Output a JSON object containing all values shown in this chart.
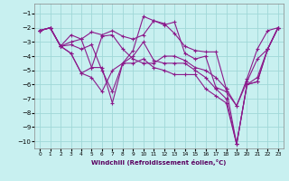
{
  "xlabel": "Windchill (Refroidissement éolien,°C)",
  "bg_color": "#c8f0f0",
  "grid_color": "#a0d8d8",
  "line_color": "#8b1a8b",
  "xlim": [
    -0.5,
    23.5
  ],
  "ylim": [
    -10.5,
    -0.3
  ],
  "yticks": [
    -1,
    -2,
    -3,
    -4,
    -5,
    -6,
    -7,
    -8,
    -9,
    -10
  ],
  "xticks": [
    0,
    1,
    2,
    3,
    4,
    5,
    6,
    7,
    8,
    9,
    10,
    11,
    12,
    13,
    14,
    15,
    16,
    17,
    18,
    19,
    20,
    21,
    22,
    23
  ],
  "lines": [
    {
      "x": [
        0,
        1,
        2,
        3,
        4,
        5,
        6,
        7,
        8,
        9,
        10,
        11,
        12,
        13,
        14,
        15,
        16,
        17,
        18,
        19,
        20,
        21,
        22,
        23
      ],
      "y": [
        -2.2,
        -2.0,
        -3.3,
        -2.5,
        -2.8,
        -2.3,
        -2.5,
        -2.2,
        -2.6,
        -2.8,
        -2.5,
        -1.5,
        -1.7,
        -2.4,
        -3.3,
        -3.6,
        -3.7,
        -3.7,
        -6.3,
        -7.5,
        -5.6,
        -3.5,
        -2.2,
        -2.0
      ]
    },
    {
      "x": [
        0,
        1,
        2,
        3,
        4,
        5,
        6,
        7,
        8,
        9,
        10,
        11,
        12,
        13,
        14,
        15,
        16,
        17,
        18,
        19,
        20,
        21,
        22,
        23
      ],
      "y": [
        -2.2,
        -2.0,
        -3.3,
        -3.8,
        -5.2,
        -4.8,
        -2.6,
        -2.5,
        -3.5,
        -4.2,
        -4.5,
        -4.5,
        -4.0,
        -4.0,
        -4.3,
        -4.8,
        -5.0,
        -5.5,
        -6.3,
        -10.2,
        -6.0,
        -5.8,
        -3.5,
        -2.0
      ]
    },
    {
      "x": [
        0,
        1,
        2,
        3,
        4,
        5,
        6,
        7,
        8,
        9,
        10,
        11,
        12,
        13,
        14,
        15,
        16,
        17,
        18,
        19,
        20,
        21,
        22,
        23
      ],
      "y": [
        -2.2,
        -2.0,
        -3.3,
        -3.8,
        -5.2,
        -5.5,
        -6.5,
        -5.0,
        -4.5,
        -4.5,
        -4.2,
        -4.8,
        -5.0,
        -5.3,
        -5.3,
        -5.3,
        -6.3,
        -6.8,
        -7.3,
        -10.2,
        -6.0,
        -5.8,
        -3.5,
        -2.0
      ]
    },
    {
      "x": [
        0,
        1,
        2,
        3,
        4,
        5,
        6,
        7,
        8,
        9,
        10,
        11,
        12,
        13,
        14,
        15,
        16,
        17,
        18,
        19,
        20,
        21,
        22,
        23
      ],
      "y": [
        -2.2,
        -2.0,
        -3.3,
        -3.0,
        -2.8,
        -4.8,
        -4.8,
        -7.3,
        -4.5,
        -3.6,
        -1.2,
        -1.5,
        -1.8,
        -1.6,
        -3.8,
        -4.2,
        -4.0,
        -6.2,
        -6.5,
        -7.5,
        -5.8,
        -4.2,
        -3.5,
        -2.0
      ]
    },
    {
      "x": [
        0,
        1,
        2,
        3,
        4,
        5,
        6,
        7,
        8,
        9,
        10,
        11,
        12,
        13,
        14,
        15,
        16,
        17,
        18,
        19,
        20,
        21,
        22,
        23
      ],
      "y": [
        -2.2,
        -2.0,
        -3.3,
        -3.2,
        -3.5,
        -3.2,
        -5.0,
        -6.5,
        -4.5,
        -4.0,
        -3.0,
        -4.3,
        -4.5,
        -4.5,
        -4.5,
        -5.0,
        -5.5,
        -6.3,
        -7.0,
        -10.2,
        -6.0,
        -5.5,
        -3.5,
        -2.0
      ]
    }
  ]
}
